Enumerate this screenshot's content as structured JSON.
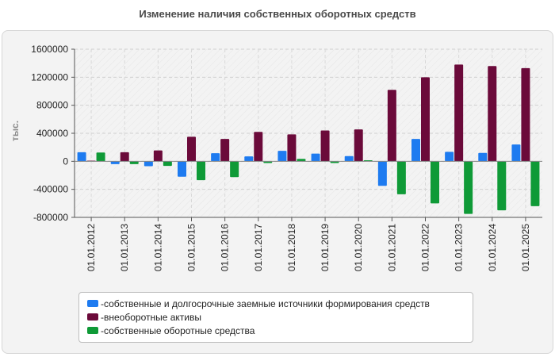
{
  "chart_data": {
    "type": "bar",
    "title": "Изменение наличия собственных оборотных средств",
    "ylabel": "тыс.",
    "xlabel": "",
    "ylim": [
      -800000,
      1600000
    ],
    "yticks": [
      "1600000",
      "1200000",
      "800000",
      "400000",
      "0",
      "-400000",
      "-800000"
    ],
    "ytick_values": [
      1600000,
      1200000,
      800000,
      400000,
      0,
      -400000,
      -800000
    ],
    "grid": true,
    "legend_position": "bottom",
    "categories": [
      "01.01.2012",
      "01.01.2013",
      "01.01.2014",
      "01.01.2015",
      "01.01.2016",
      "01.01.2017",
      "01.01.2018",
      "01.01.2019",
      "01.01.2020",
      "01.01.2021",
      "01.01.2022",
      "01.01.2023",
      "01.01.2024",
      "01.01.2025"
    ],
    "series": [
      {
        "name": "собственные и долгосрочные заемные источники формирования средств",
        "color": "#1e7bf0",
        "values": [
          130000,
          -40000,
          -70000,
          -220000,
          115000,
          70000,
          150000,
          110000,
          75000,
          -350000,
          320000,
          135000,
          120000,
          240000
        ]
      },
      {
        "name": "внеоборотные активы",
        "color": "#6b0a3a",
        "values": [
          10000,
          130000,
          155000,
          350000,
          320000,
          420000,
          385000,
          440000,
          455000,
          1020000,
          1200000,
          1380000,
          1360000,
          1330000
        ]
      },
      {
        "name": "собственные оборотные средства",
        "color": "#0f9a37",
        "values": [
          125000,
          -40000,
          -65000,
          -270000,
          -225000,
          -25000,
          35000,
          -25000,
          15000,
          -470000,
          -600000,
          -750000,
          -700000,
          -640000
        ]
      }
    ]
  }
}
